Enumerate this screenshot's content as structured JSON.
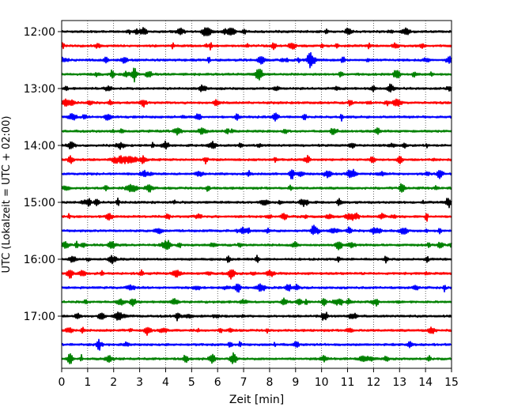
{
  "chart_data": {
    "type": "line",
    "xlabel": "Zeit  [min]",
    "ylabel": "UTC (Lokalzeit = UTC + 02:00)",
    "xlim": [
      0,
      15
    ],
    "x_ticks": [
      "0",
      "1",
      "2",
      "3",
      "4",
      "5",
      "6",
      "7",
      "8",
      "9",
      "10",
      "11",
      "12",
      "13",
      "14",
      "15"
    ],
    "y_tick_labels": [
      "12:00",
      "13:00",
      "14:00",
      "15:00",
      "16:00",
      "17:00"
    ],
    "grid": "vertical dotted lines at each minute",
    "trace_colors": [
      "#000000",
      "#ff0000",
      "#0000ff",
      "#008000"
    ],
    "traces": [
      {
        "start": "12:00",
        "color": "#000000"
      },
      {
        "start": "12:15",
        "color": "#ff0000"
      },
      {
        "start": "12:30",
        "color": "#0000ff"
      },
      {
        "start": "12:45",
        "color": "#008000"
      },
      {
        "start": "13:00",
        "color": "#000000"
      },
      {
        "start": "13:15",
        "color": "#ff0000"
      },
      {
        "start": "13:30",
        "color": "#0000ff"
      },
      {
        "start": "13:45",
        "color": "#008000"
      },
      {
        "start": "14:00",
        "color": "#000000"
      },
      {
        "start": "14:15",
        "color": "#ff0000"
      },
      {
        "start": "14:30",
        "color": "#0000ff"
      },
      {
        "start": "14:45",
        "color": "#008000"
      },
      {
        "start": "15:00",
        "color": "#000000"
      },
      {
        "start": "15:15",
        "color": "#ff0000"
      },
      {
        "start": "15:30",
        "color": "#0000ff"
      },
      {
        "start": "15:45",
        "color": "#008000"
      },
      {
        "start": "16:00",
        "color": "#000000"
      },
      {
        "start": "16:15",
        "color": "#ff0000"
      },
      {
        "start": "16:30",
        "color": "#0000ff"
      },
      {
        "start": "16:45",
        "color": "#008000"
      },
      {
        "start": "17:00",
        "color": "#000000"
      },
      {
        "start": "17:15",
        "color": "#ff0000"
      },
      {
        "start": "17:30",
        "color": "#0000ff"
      },
      {
        "start": "17:45",
        "color": "#008000"
      }
    ]
  }
}
